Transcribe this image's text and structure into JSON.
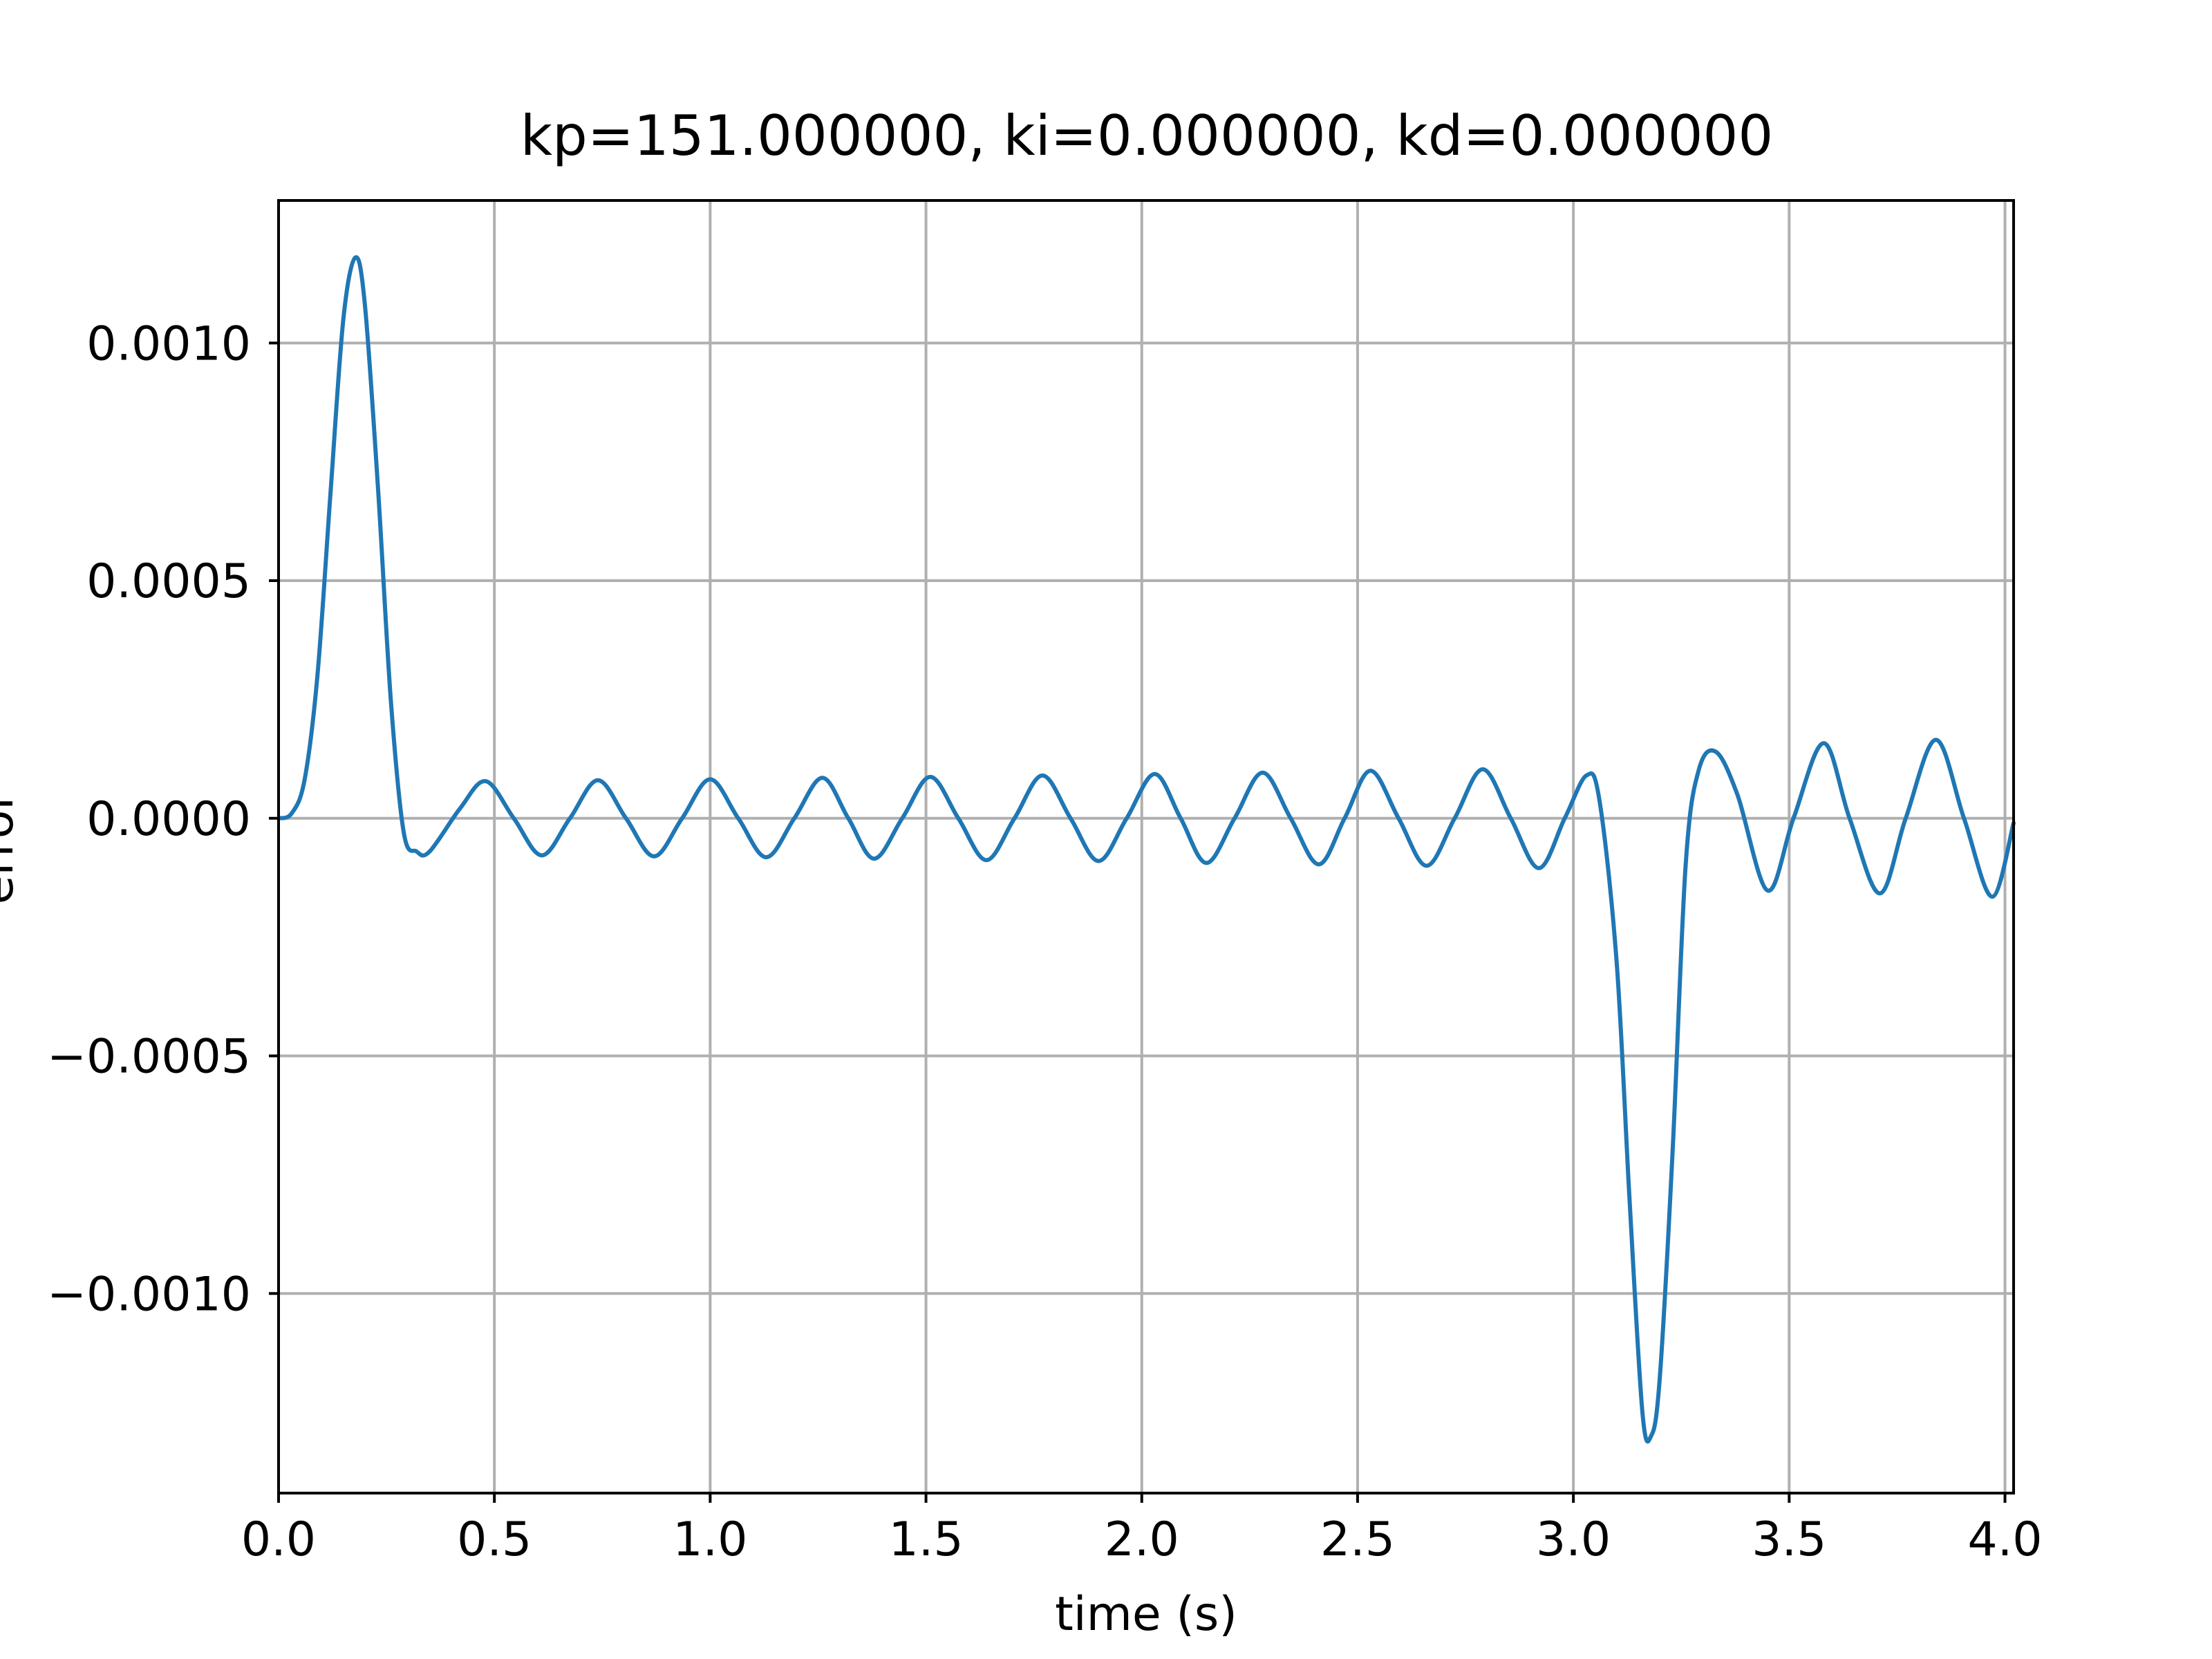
{
  "chart_data": {
    "type": "line",
    "title": "kp=151.000000, ki=0.000000, kd=0.000000",
    "xlabel": "time (s)",
    "ylabel": "error",
    "xlim": [
      0,
      4.02
    ],
    "ylim": [
      -0.00142,
      0.0013
    ],
    "grid": true,
    "x_ticks": [
      {
        "value": 0.0,
        "label": "0.0"
      },
      {
        "value": 0.5,
        "label": "0.5"
      },
      {
        "value": 1.0,
        "label": "1.0"
      },
      {
        "value": 1.5,
        "label": "1.5"
      },
      {
        "value": 2.0,
        "label": "2.0"
      },
      {
        "value": 2.5,
        "label": "2.5"
      },
      {
        "value": 3.0,
        "label": "3.0"
      },
      {
        "value": 3.5,
        "label": "3.5"
      },
      {
        "value": 4.0,
        "label": "4.0"
      }
    ],
    "y_ticks": [
      {
        "value": 0.001,
        "label": "0.0010"
      },
      {
        "value": 0.0005,
        "label": "0.0005"
      },
      {
        "value": 0.0,
        "label": "0.0000"
      },
      {
        "value": -0.0005,
        "label": "−0.0005"
      },
      {
        "value": -0.001,
        "label": "−0.0010"
      }
    ],
    "series": [
      {
        "color": "#1f77b4",
        "points": [
          [
            0.0,
            0.0
          ],
          [
            0.03,
            1e-05
          ],
          [
            0.06,
            8e-05
          ],
          [
            0.09,
            0.0003
          ],
          [
            0.12,
            0.00068
          ],
          [
            0.15,
            0.00105
          ],
          [
            0.178,
            0.00118
          ],
          [
            0.2,
            0.00108
          ],
          [
            0.23,
            0.0007
          ],
          [
            0.26,
            0.00025
          ],
          [
            0.29,
            -3e-05
          ],
          [
            0.32,
            -7e-05
          ],
          [
            0.35,
            -7e-05
          ],
          [
            0.42,
            2e-05
          ],
          [
            0.48,
            7.8e-05
          ],
          [
            0.545,
            0.0
          ],
          [
            0.61,
            -7.8e-05
          ],
          [
            0.675,
            0.0
          ],
          [
            0.74,
            8e-05
          ],
          [
            0.805,
            0.0
          ],
          [
            0.87,
            -8e-05
          ],
          [
            0.935,
            0.0
          ],
          [
            1.0,
            8.2e-05
          ],
          [
            1.065,
            0.0
          ],
          [
            1.13,
            -8.2e-05
          ],
          [
            1.195,
            0.0
          ],
          [
            1.26,
            8.5e-05
          ],
          [
            1.32,
            0.0
          ],
          [
            1.38,
            -8.5e-05
          ],
          [
            1.445,
            0.0
          ],
          [
            1.51,
            8.7e-05
          ],
          [
            1.575,
            0.0
          ],
          [
            1.64,
            -8.8e-05
          ],
          [
            1.705,
            0.0
          ],
          [
            1.77,
            9e-05
          ],
          [
            1.835,
            0.0
          ],
          [
            1.9,
            -9e-05
          ],
          [
            1.965,
            0.0
          ],
          [
            2.03,
            9.3e-05
          ],
          [
            2.09,
            0.0
          ],
          [
            2.15,
            -9.4e-05
          ],
          [
            2.215,
            0.0
          ],
          [
            2.28,
            9.6e-05
          ],
          [
            2.345,
            0.0
          ],
          [
            2.41,
            -9.7e-05
          ],
          [
            2.47,
            0.0
          ],
          [
            2.53,
            0.0001
          ],
          [
            2.595,
            0.0
          ],
          [
            2.66,
            -0.0001
          ],
          [
            2.725,
            0.0
          ],
          [
            2.79,
            0.000103
          ],
          [
            2.855,
            0.0
          ],
          [
            2.92,
            -0.000105
          ],
          [
            2.98,
            0.0
          ],
          [
            3.03,
            9e-05
          ],
          [
            3.06,
            4e-05
          ],
          [
            3.1,
            -0.0003
          ],
          [
            3.13,
            -0.0008
          ],
          [
            3.16,
            -0.00125
          ],
          [
            3.18,
            -0.0013
          ],
          [
            3.2,
            -0.00118
          ],
          [
            3.23,
            -0.0007
          ],
          [
            3.26,
            -0.0001
          ],
          [
            3.29,
            0.0001
          ],
          [
            3.33,
            0.00014
          ],
          [
            3.38,
            5e-05
          ],
          [
            3.45,
            -0.000152
          ],
          [
            3.51,
            0.0
          ],
          [
            3.58,
            0.000158
          ],
          [
            3.64,
            0.0
          ],
          [
            3.71,
            -0.000158
          ],
          [
            3.77,
            0.0
          ],
          [
            3.84,
            0.000165
          ],
          [
            3.905,
            0.0
          ],
          [
            3.97,
            -0.000165
          ],
          [
            4.02,
            -1e-05
          ]
        ]
      }
    ]
  }
}
